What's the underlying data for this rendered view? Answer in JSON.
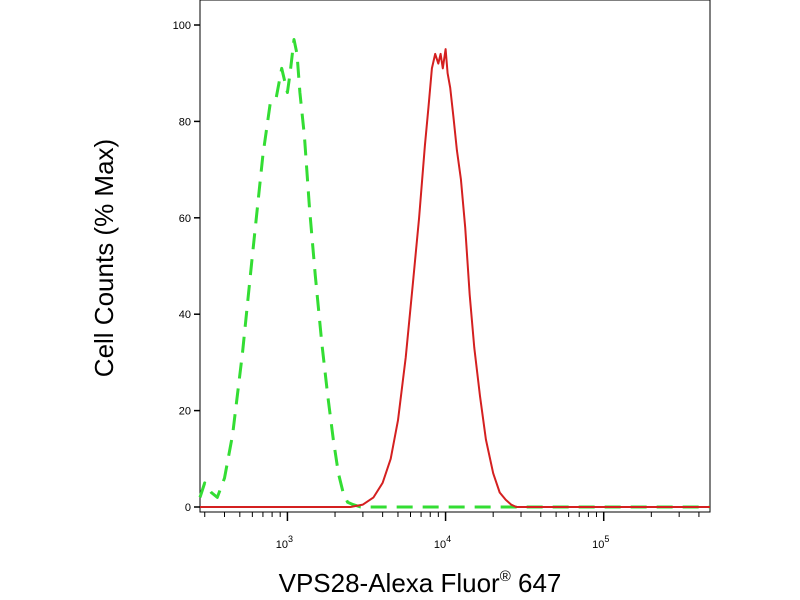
{
  "chart_data": {
    "type": "line",
    "title": "",
    "xlabel": "VPS28-Alexa Fluor",
    "xlabel_superscript": "®",
    "xlabel_suffix": " 647",
    "ylabel": "Cell Counts (% Max)",
    "x_scale": "log",
    "xlim": [
      280,
      470000
    ],
    "ylim": [
      0,
      100
    ],
    "grid": false,
    "legend": "none",
    "x_ticks": [
      {
        "base": "10",
        "exp": "3",
        "value": 1000
      },
      {
        "base": "10",
        "exp": "4",
        "value": 10000
      },
      {
        "base": "10",
        "exp": "5",
        "value": 100000
      }
    ],
    "y_ticks": [
      "0",
      "20",
      "40",
      "60",
      "80",
      "100"
    ],
    "series": [
      {
        "color": "#33dd33",
        "dash": true,
        "x": [
          280,
          300,
          330,
          360,
          400,
          450,
          520,
          600,
          700,
          780,
          850,
          920,
          1000,
          1040,
          1100,
          1150,
          1200,
          1280,
          1380,
          1500,
          1650,
          1800,
          1950,
          2100,
          2250,
          2400,
          2600,
          2900,
          3500,
          5000,
          10000,
          30000,
          470000
        ],
        "y": [
          2,
          5,
          3,
          2,
          6,
          15,
          32,
          52,
          73,
          84,
          85,
          91,
          86,
          90,
          97,
          94,
          86,
          77,
          62,
          48,
          34,
          23,
          14,
          7,
          3,
          1,
          0.5,
          0,
          0,
          0,
          0,
          0,
          0
        ]
      },
      {
        "color": "#d42020",
        "dash": false,
        "x": [
          280,
          2500,
          3000,
          3500,
          4000,
          4500,
          5000,
          5600,
          6200,
          6800,
          7400,
          7800,
          8200,
          8600,
          9000,
          9300,
          9600,
          10000,
          10300,
          10700,
          11200,
          11800,
          12500,
          13300,
          14200,
          15200,
          16500,
          18000,
          20000,
          22000,
          24000,
          26000,
          28000,
          32000,
          470000
        ],
        "y": [
          0,
          0,
          0.5,
          2,
          5,
          10,
          18,
          31,
          46,
          60,
          75,
          83,
          91,
          94,
          92,
          94,
          91,
          95,
          90,
          87,
          81,
          74,
          68,
          58,
          44,
          33,
          23,
          14,
          7,
          3,
          1.5,
          0.5,
          0,
          0,
          0
        ]
      }
    ]
  }
}
